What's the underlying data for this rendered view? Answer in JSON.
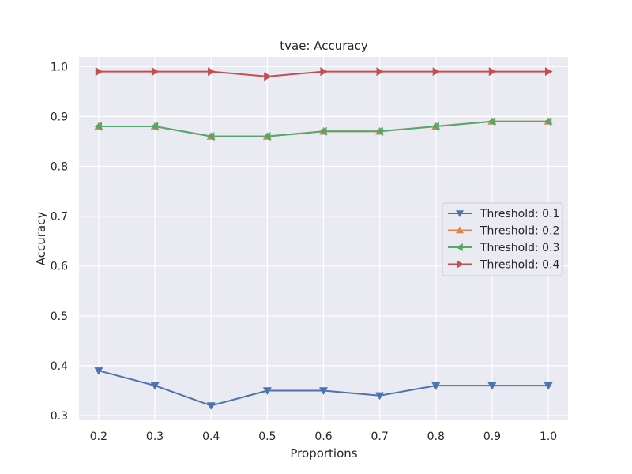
{
  "chart_data": {
    "type": "line",
    "title": "tvae: Accuracy",
    "xlabel": "Proportions",
    "ylabel": "Accuracy",
    "x": [
      0.2,
      0.3,
      0.4,
      0.5,
      0.6,
      0.7,
      0.8,
      0.9,
      1.0
    ],
    "x_tick_labels": [
      "0.2",
      "0.3",
      "0.4",
      "0.5",
      "0.6",
      "0.7",
      "0.8",
      "0.9",
      "1.0"
    ],
    "y_ticks": [
      0.3,
      0.4,
      0.5,
      0.6,
      0.7,
      0.8,
      0.9,
      1.0
    ],
    "y_tick_labels": [
      "0.3",
      "0.4",
      "0.5",
      "0.6",
      "0.7",
      "0.8",
      "0.9",
      "1.0"
    ],
    "xlim": [
      0.165,
      1.035
    ],
    "ylim": [
      0.2905,
      1.0195
    ],
    "grid": true,
    "legend_position": "center-right",
    "background": "#eaeaf2",
    "series": [
      {
        "name": "Threshold: 0.1",
        "color": "#4c72b0",
        "marker": "triangle-down",
        "values": [
          0.39,
          0.36,
          0.32,
          0.35,
          0.35,
          0.34,
          0.36,
          0.36,
          0.36
        ]
      },
      {
        "name": "Threshold: 0.2",
        "color": "#dd8452",
        "marker": "triangle-up",
        "values": [
          0.88,
          0.88,
          0.86,
          0.86,
          0.87,
          0.87,
          0.88,
          0.89,
          0.89
        ]
      },
      {
        "name": "Threshold: 0.3",
        "color": "#55a868",
        "marker": "triangle-left",
        "values": [
          0.88,
          0.88,
          0.86,
          0.86,
          0.87,
          0.87,
          0.88,
          0.89,
          0.89
        ]
      },
      {
        "name": "Threshold: 0.4",
        "color": "#c44e52",
        "marker": "triangle-right",
        "values": [
          0.99,
          0.99,
          0.99,
          0.98,
          0.99,
          0.99,
          0.99,
          0.99,
          0.99
        ]
      }
    ]
  }
}
